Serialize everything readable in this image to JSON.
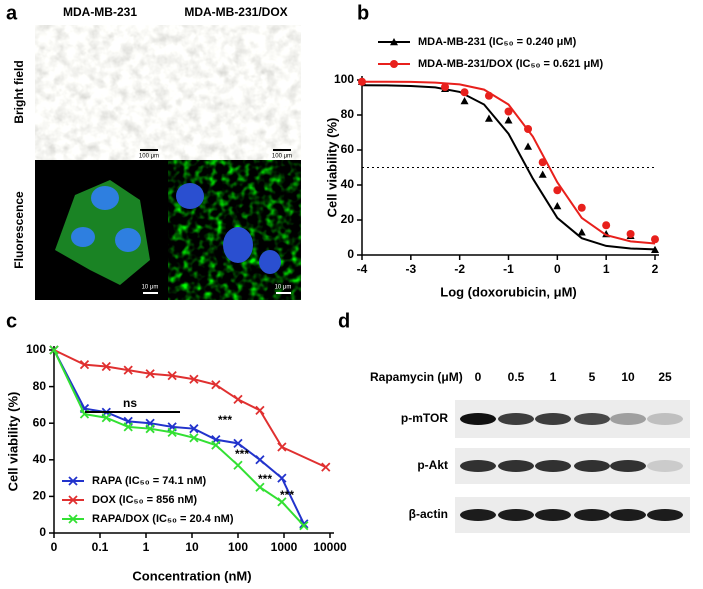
{
  "panel_labels": [
    "a",
    "b",
    "c",
    "d"
  ],
  "micrographs": {
    "columns": [
      "MDA-MB-231",
      "MDA-MB-231/DOX"
    ],
    "rows": [
      "Bright field",
      "Fluorescence"
    ],
    "scale_bars": [
      "100 μm",
      "100 μm",
      "10 μm",
      "10 μm"
    ]
  },
  "chart_data": [
    {
      "type": "line",
      "x_label": "Log (doxorubicin, μM)",
      "y_label": "Cell viability  (%)",
      "xlim": [
        -4,
        2
      ],
      "xticks": [
        -4,
        -3,
        -2,
        -1,
        0,
        1,
        2
      ],
      "ylim": [
        0,
        100
      ],
      "yticks": [
        0,
        20,
        40,
        60,
        80,
        100
      ],
      "reference_line": 50,
      "series": [
        {
          "name": "MDA-MB-231 (IC₅₀ = 0.240 μM)",
          "color": "#000000",
          "marker": "triangle",
          "x": [
            -4,
            -2.3,
            -1.9,
            -1.4,
            -1,
            -0.6,
            -0.3,
            0,
            0.5,
            1,
            1.5,
            2
          ],
          "values": [
            99,
            95,
            88,
            78,
            77,
            62,
            46,
            28,
            13,
            12,
            11,
            3
          ],
          "fit": {
            "x": [
              -4,
              -3.5,
              -3,
              -2.5,
              -2,
              -1.5,
              -1,
              -0.5,
              0,
              0.5,
              1,
              1.5,
              2
            ],
            "values": [
              97,
              96.9,
              96.6,
              95.8,
              93.2,
              86,
              69.3,
              43.6,
              21.2,
              9.6,
              5.2,
              3.7,
              3.2
            ]
          }
        },
        {
          "name": "MDA-MB-231/DOX (IC₅₀ = 0.621 μM)",
          "color": "#e8201c",
          "marker": "circle",
          "x": [
            -4,
            -2.3,
            -1.9,
            -1.4,
            -1,
            -0.6,
            -0.3,
            0,
            0.5,
            1,
            1.5,
            2
          ],
          "values": [
            99,
            96,
            93,
            91,
            82,
            72,
            53,
            37,
            27,
            17,
            12,
            9
          ],
          "fit": {
            "x": [
              -4,
              -3.5,
              -3,
              -2.5,
              -2,
              -1.5,
              -1,
              -0.5,
              0,
              0.5,
              1,
              1.5,
              2
            ],
            "values": [
              99,
              99,
              98.9,
              98.5,
              97.5,
              94.5,
              86,
              67.6,
              41.5,
              21.2,
              11.4,
              7.8,
              6.6
            ]
          }
        }
      ]
    },
    {
      "type": "line",
      "x_label": "Concentration (nM)",
      "y_label": "Cell viability (%)",
      "xlog": true,
      "xlim": [
        0,
        10000
      ],
      "xticks": [
        0,
        0.1,
        1,
        10,
        100,
        1000,
        10000
      ],
      "ylim": [
        0,
        100
      ],
      "yticks": [
        0,
        20,
        40,
        60,
        80,
        100
      ],
      "annotations": [
        "ns",
        "***",
        "***",
        "***",
        "***"
      ],
      "series": [
        {
          "name": "RAPA (IC₅₀ = 74.1 nM)",
          "color": "#2233cc",
          "marker": "x",
          "x": [
            0,
            0.046,
            0.137,
            0.41,
            1.23,
            3.7,
            11,
            33,
            100,
            300,
            900,
            2700
          ],
          "values": [
            100,
            68,
            66,
            61,
            60,
            58,
            57,
            51,
            49,
            40,
            30,
            5
          ]
        },
        {
          "name": "DOX (IC₅₀ = 856 nM)",
          "color": "#e03030",
          "marker": "x",
          "x": [
            0,
            0.046,
            0.137,
            0.41,
            1.23,
            3.7,
            11,
            33,
            100,
            300,
            900,
            8100
          ],
          "values": [
            100,
            92,
            91,
            89,
            87,
            86,
            84,
            81,
            73,
            67,
            47,
            36
          ]
        },
        {
          "name": "RAPA/DOX (IC₅₀ = 20.4 nM)",
          "color": "#33e033",
          "marker": "x",
          "x": [
            0,
            0.046,
            0.137,
            0.41,
            1.23,
            3.7,
            11,
            33,
            100,
            300,
            900,
            2700
          ],
          "values": [
            100,
            65,
            63,
            58,
            57,
            55,
            52,
            48,
            37,
            25,
            17,
            4
          ]
        }
      ]
    }
  ],
  "western_blot": {
    "treatment": "Rapamycin (μM)",
    "lanes": [
      "0",
      "0.5",
      "1",
      "5",
      "10",
      "25"
    ],
    "proteins": [
      "p-mTOR",
      "p-Akt",
      "β-actin"
    ]
  }
}
